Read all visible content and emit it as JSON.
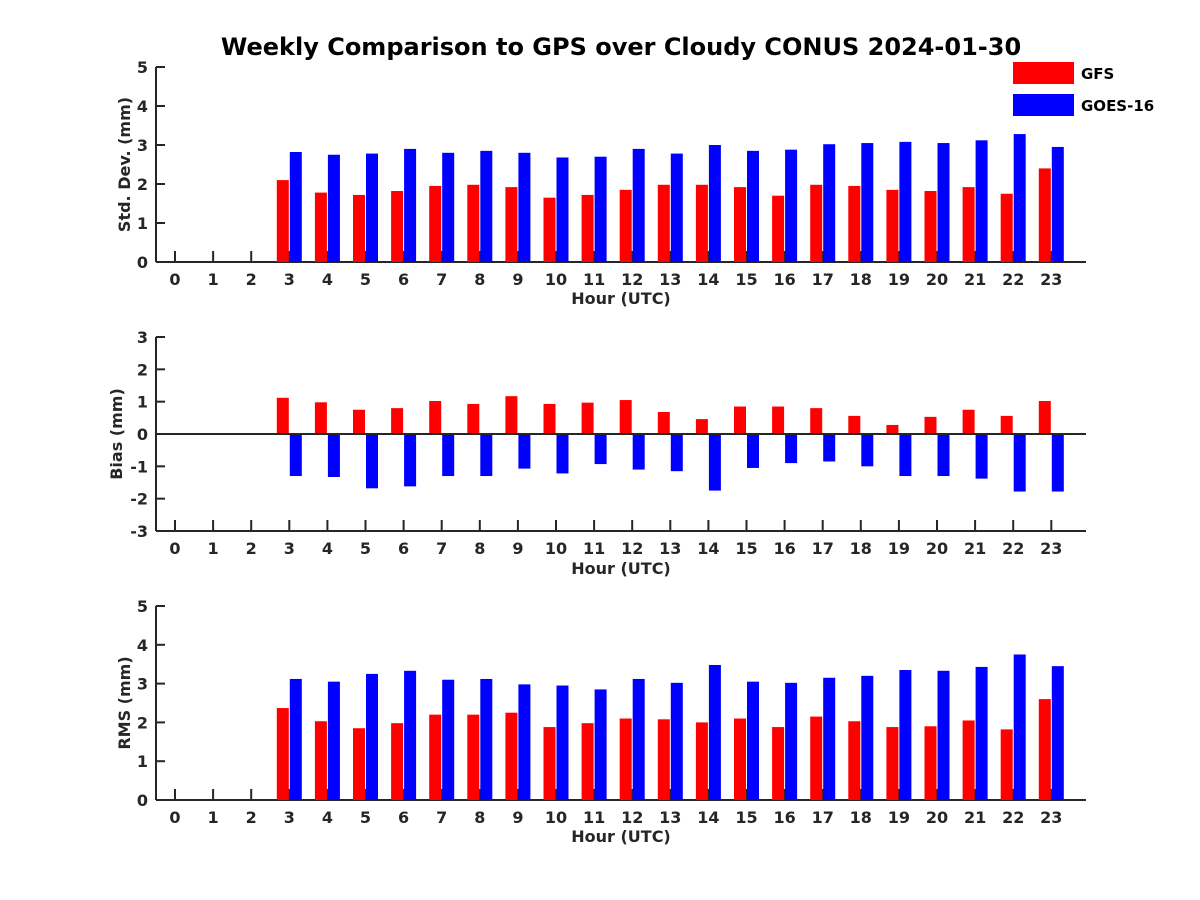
{
  "title": "Weekly Comparison to GPS over Cloudy CONUS 2024-01-30",
  "colors": {
    "GFS": "#ff0000",
    "GOES-16": "#0000ff"
  },
  "legend": [
    "GFS",
    "GOES-16"
  ],
  "chart_data": [
    {
      "type": "bar",
      "categories": [
        "0",
        "1",
        "2",
        "3",
        "4",
        "5",
        "6",
        "7",
        "8",
        "9",
        "10",
        "11",
        "12",
        "13",
        "14",
        "15",
        "16",
        "17",
        "18",
        "19",
        "20",
        "21",
        "22",
        "23"
      ],
      "xlabel": "Hour (UTC)",
      "ylabel": "Std. Dev. (mm)",
      "ylim": [
        0,
        5
      ],
      "yticks": [
        0,
        1,
        2,
        3,
        4,
        5
      ],
      "series": [
        {
          "name": "GFS",
          "values": [
            null,
            null,
            null,
            2.1,
            1.78,
            1.72,
            1.82,
            1.95,
            1.98,
            1.92,
            1.65,
            1.72,
            1.85,
            1.98,
            1.98,
            1.92,
            1.7,
            1.98,
            1.95,
            1.85,
            1.82,
            1.92,
            1.75,
            2.4
          ]
        },
        {
          "name": "GOES-16",
          "values": [
            null,
            null,
            null,
            2.82,
            2.75,
            2.78,
            2.9,
            2.8,
            2.85,
            2.8,
            2.68,
            2.7,
            2.9,
            2.78,
            3.0,
            2.85,
            2.88,
            3.02,
            3.05,
            3.08,
            3.05,
            3.12,
            3.28,
            2.95
          ]
        }
      ]
    },
    {
      "type": "bar",
      "categories": [
        "0",
        "1",
        "2",
        "3",
        "4",
        "5",
        "6",
        "7",
        "8",
        "9",
        "10",
        "11",
        "12",
        "13",
        "14",
        "15",
        "16",
        "17",
        "18",
        "19",
        "20",
        "21",
        "22",
        "23"
      ],
      "xlabel": "Hour (UTC)",
      "ylabel": "Bias (mm)",
      "ylim": [
        -3,
        3
      ],
      "yticks": [
        -3,
        -2,
        -1,
        0,
        1,
        2,
        3
      ],
      "zero_line": true,
      "series": [
        {
          "name": "GFS",
          "values": [
            null,
            null,
            null,
            1.12,
            0.98,
            0.75,
            0.8,
            1.02,
            0.93,
            1.17,
            0.93,
            0.97,
            1.05,
            0.68,
            0.46,
            0.85,
            0.85,
            0.8,
            0.56,
            0.28,
            0.53,
            0.75,
            0.56,
            1.02
          ]
        },
        {
          "name": "GOES-16",
          "values": [
            null,
            null,
            null,
            -1.3,
            -1.33,
            -1.68,
            -1.62,
            -1.3,
            -1.3,
            -1.07,
            -1.22,
            -0.93,
            -1.1,
            -1.15,
            -1.75,
            -1.05,
            -0.9,
            -0.85,
            -1.0,
            -1.3,
            -1.3,
            -1.38,
            -1.78,
            -1.78
          ]
        }
      ]
    },
    {
      "type": "bar",
      "categories": [
        "0",
        "1",
        "2",
        "3",
        "4",
        "5",
        "6",
        "7",
        "8",
        "9",
        "10",
        "11",
        "12",
        "13",
        "14",
        "15",
        "16",
        "17",
        "18",
        "19",
        "20",
        "21",
        "22",
        "23"
      ],
      "xlabel": "Hour (UTC)",
      "ylabel": "RMS (mm)",
      "ylim": [
        0,
        5
      ],
      "yticks": [
        0,
        1,
        2,
        3,
        4,
        5
      ],
      "series": [
        {
          "name": "GFS",
          "values": [
            null,
            null,
            null,
            2.37,
            2.03,
            1.85,
            1.98,
            2.2,
            2.2,
            2.25,
            1.88,
            1.98,
            2.1,
            2.08,
            2.0,
            2.1,
            1.88,
            2.15,
            2.03,
            1.88,
            1.9,
            2.05,
            1.82,
            2.6
          ]
        },
        {
          "name": "GOES-16",
          "values": [
            null,
            null,
            null,
            3.12,
            3.05,
            3.25,
            3.33,
            3.1,
            3.12,
            2.98,
            2.95,
            2.85,
            3.12,
            3.02,
            3.48,
            3.05,
            3.02,
            3.15,
            3.2,
            3.35,
            3.33,
            3.43,
            3.75,
            3.45
          ]
        }
      ]
    }
  ]
}
